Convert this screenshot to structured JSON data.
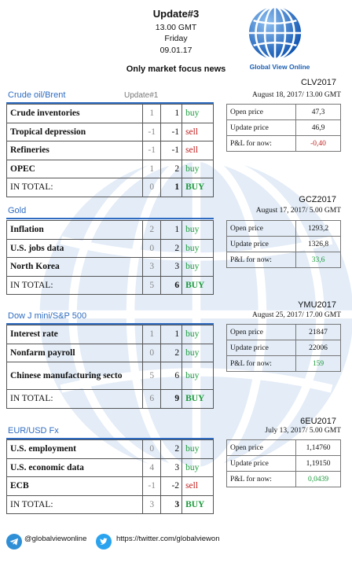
{
  "header": {
    "title": "Update#3",
    "time": "13.00 GMT",
    "day": "Friday",
    "date": "09.01.17",
    "focus": "Only market focus news"
  },
  "logo": {
    "text": "Global View Online"
  },
  "sections": [
    {
      "title": "Crude oil/Brent",
      "update": "Update#1",
      "code": "CLV2017",
      "date": "August 18, 2017/ 13.00 GMT",
      "rows": [
        {
          "label": "Crude inventories",
          "v1": "1",
          "v2": "1",
          "signal": "buy"
        },
        {
          "label": "Tropical depression",
          "v1": "-1",
          "v2": "-1",
          "signal": "sell"
        },
        {
          "label": "Refineries",
          "v1": "-1",
          "v2": "-1",
          "signal": "sell"
        },
        {
          "label": "OPEC",
          "v1": "1",
          "v2": "2",
          "signal": "buy"
        }
      ],
      "total": {
        "label": "IN TOTAL:",
        "v1": "0",
        "v2": "1",
        "signal": "BUY"
      },
      "open_label": "Open price",
      "open": "47,3",
      "update_label": "Update price",
      "upd": "46,9",
      "pl_label": "P&L for now:",
      "pl": "-0,40"
    },
    {
      "title": "Gold",
      "update": "",
      "code": "GCZ2017",
      "date": "August 17, 2017/ 5.00 GMT",
      "rows": [
        {
          "label": "Inflation",
          "v1": "2",
          "v2": "1",
          "signal": "buy"
        },
        {
          "label": "U.S. jobs data",
          "v1": "0",
          "v2": "2",
          "signal": "buy"
        },
        {
          "label": "North Korea",
          "v1": "3",
          "v2": "3",
          "signal": "buy"
        }
      ],
      "total": {
        "label": "IN TOTAL:",
        "v1": "5",
        "v2": "6",
        "signal": "BUY"
      },
      "open_label": "Open price",
      "open": "1293,2",
      "update_label": "Update price",
      "upd": "1326,8",
      "pl_label": "P&L for now:",
      "pl": "33,6"
    },
    {
      "title": "Dow J mini/S&P 500",
      "update": "",
      "code": "YMU2017",
      "date": "August 25, 2017/ 17.00 GMT",
      "rows": [
        {
          "label": "Interest rate",
          "v1": "1",
          "v2": "1",
          "signal": "buy"
        },
        {
          "label": "Nonfarm payroll",
          "v1": "0",
          "v2": "2",
          "signal": "buy"
        },
        {
          "label": "Chinese manufacturing secto",
          "v1": "5",
          "v2": "6",
          "signal": "buy"
        }
      ],
      "total": {
        "label": "IN TOTAL:",
        "v1": "6",
        "v2": "9",
        "signal": "BUY"
      },
      "open_label": "Open price",
      "open": "21847",
      "update_label": "Update price",
      "upd": "22006",
      "pl_label": "P&L for now:",
      "pl": "159"
    },
    {
      "title": "EUR/USD Fx",
      "update": "",
      "code": "6EU2017",
      "date": "July 13, 2017/ 5.00 GMT",
      "rows": [
        {
          "label": "U.S. employment",
          "v1": "0",
          "v2": "2",
          "signal": "buy"
        },
        {
          "label": "U.S. economic data",
          "v1": "4",
          "v2": "3",
          "signal": "buy"
        },
        {
          "label": "ECB",
          "v1": "-1",
          "v2": "-2",
          "signal": "sell"
        }
      ],
      "total": {
        "label": "IN TOTAL:",
        "v1": "3",
        "v2": "3",
        "signal": "BUY"
      },
      "open_label": "Open price",
      "open": "1,14760",
      "update_label": "Update price",
      "upd": "1,19150",
      "pl_label": "P&L for now:",
      "pl": "0,0439"
    }
  ],
  "footer": {
    "telegram": "@globalviewonline",
    "twitter": "https://twitter.com/globalviewon"
  },
  "colors": {
    "accent": "#2f6cc1",
    "buy": "#1a9a3a",
    "sell": "#c02020"
  }
}
